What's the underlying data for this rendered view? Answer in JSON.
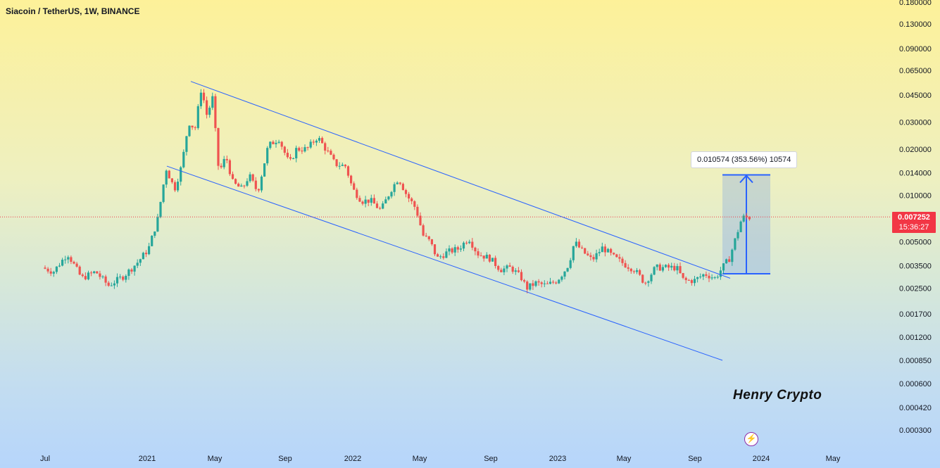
{
  "chart_data": {
    "type": "candlestick",
    "title": "Siacoin / TetherUS, 1W, BINANCE",
    "y_scale": "log",
    "y_ticks": [
      "0.180000",
      "0.130000",
      "0.090000",
      "0.065000",
      "0.045000",
      "0.030000",
      "0.020000",
      "0.014000",
      "0.010000",
      "0.005000",
      "0.003500",
      "0.002500",
      "0.001700",
      "0.001200",
      "0.000850",
      "0.000600",
      "0.000420",
      "0.000300"
    ],
    "x_ticks": [
      "Jul",
      "2021",
      "May",
      "Sep",
      "2022",
      "May",
      "Sep",
      "2023",
      "May",
      "Sep",
      "2024",
      "May"
    ],
    "last_price": "0.007252",
    "countdown": "15:36:27",
    "measure_label": "0.010574 (353.56%) 10574",
    "measure_range": [
      0.0031,
      0.0136
    ],
    "watermark": "Henry Crypto",
    "channel_upper": [
      [
        0.055,
        "2021-04"
      ],
      [
        0.0029,
        "2023-10"
      ]
    ],
    "channel_lower": [
      [
        0.0155,
        "2021-01"
      ],
      [
        0.00085,
        "2023-10"
      ]
    ],
    "colors": {
      "up": "#26a69a",
      "down": "#ef5350",
      "channel": "#2962ff",
      "price_line": "#f23645"
    }
  },
  "logo_glyph": "⚡"
}
